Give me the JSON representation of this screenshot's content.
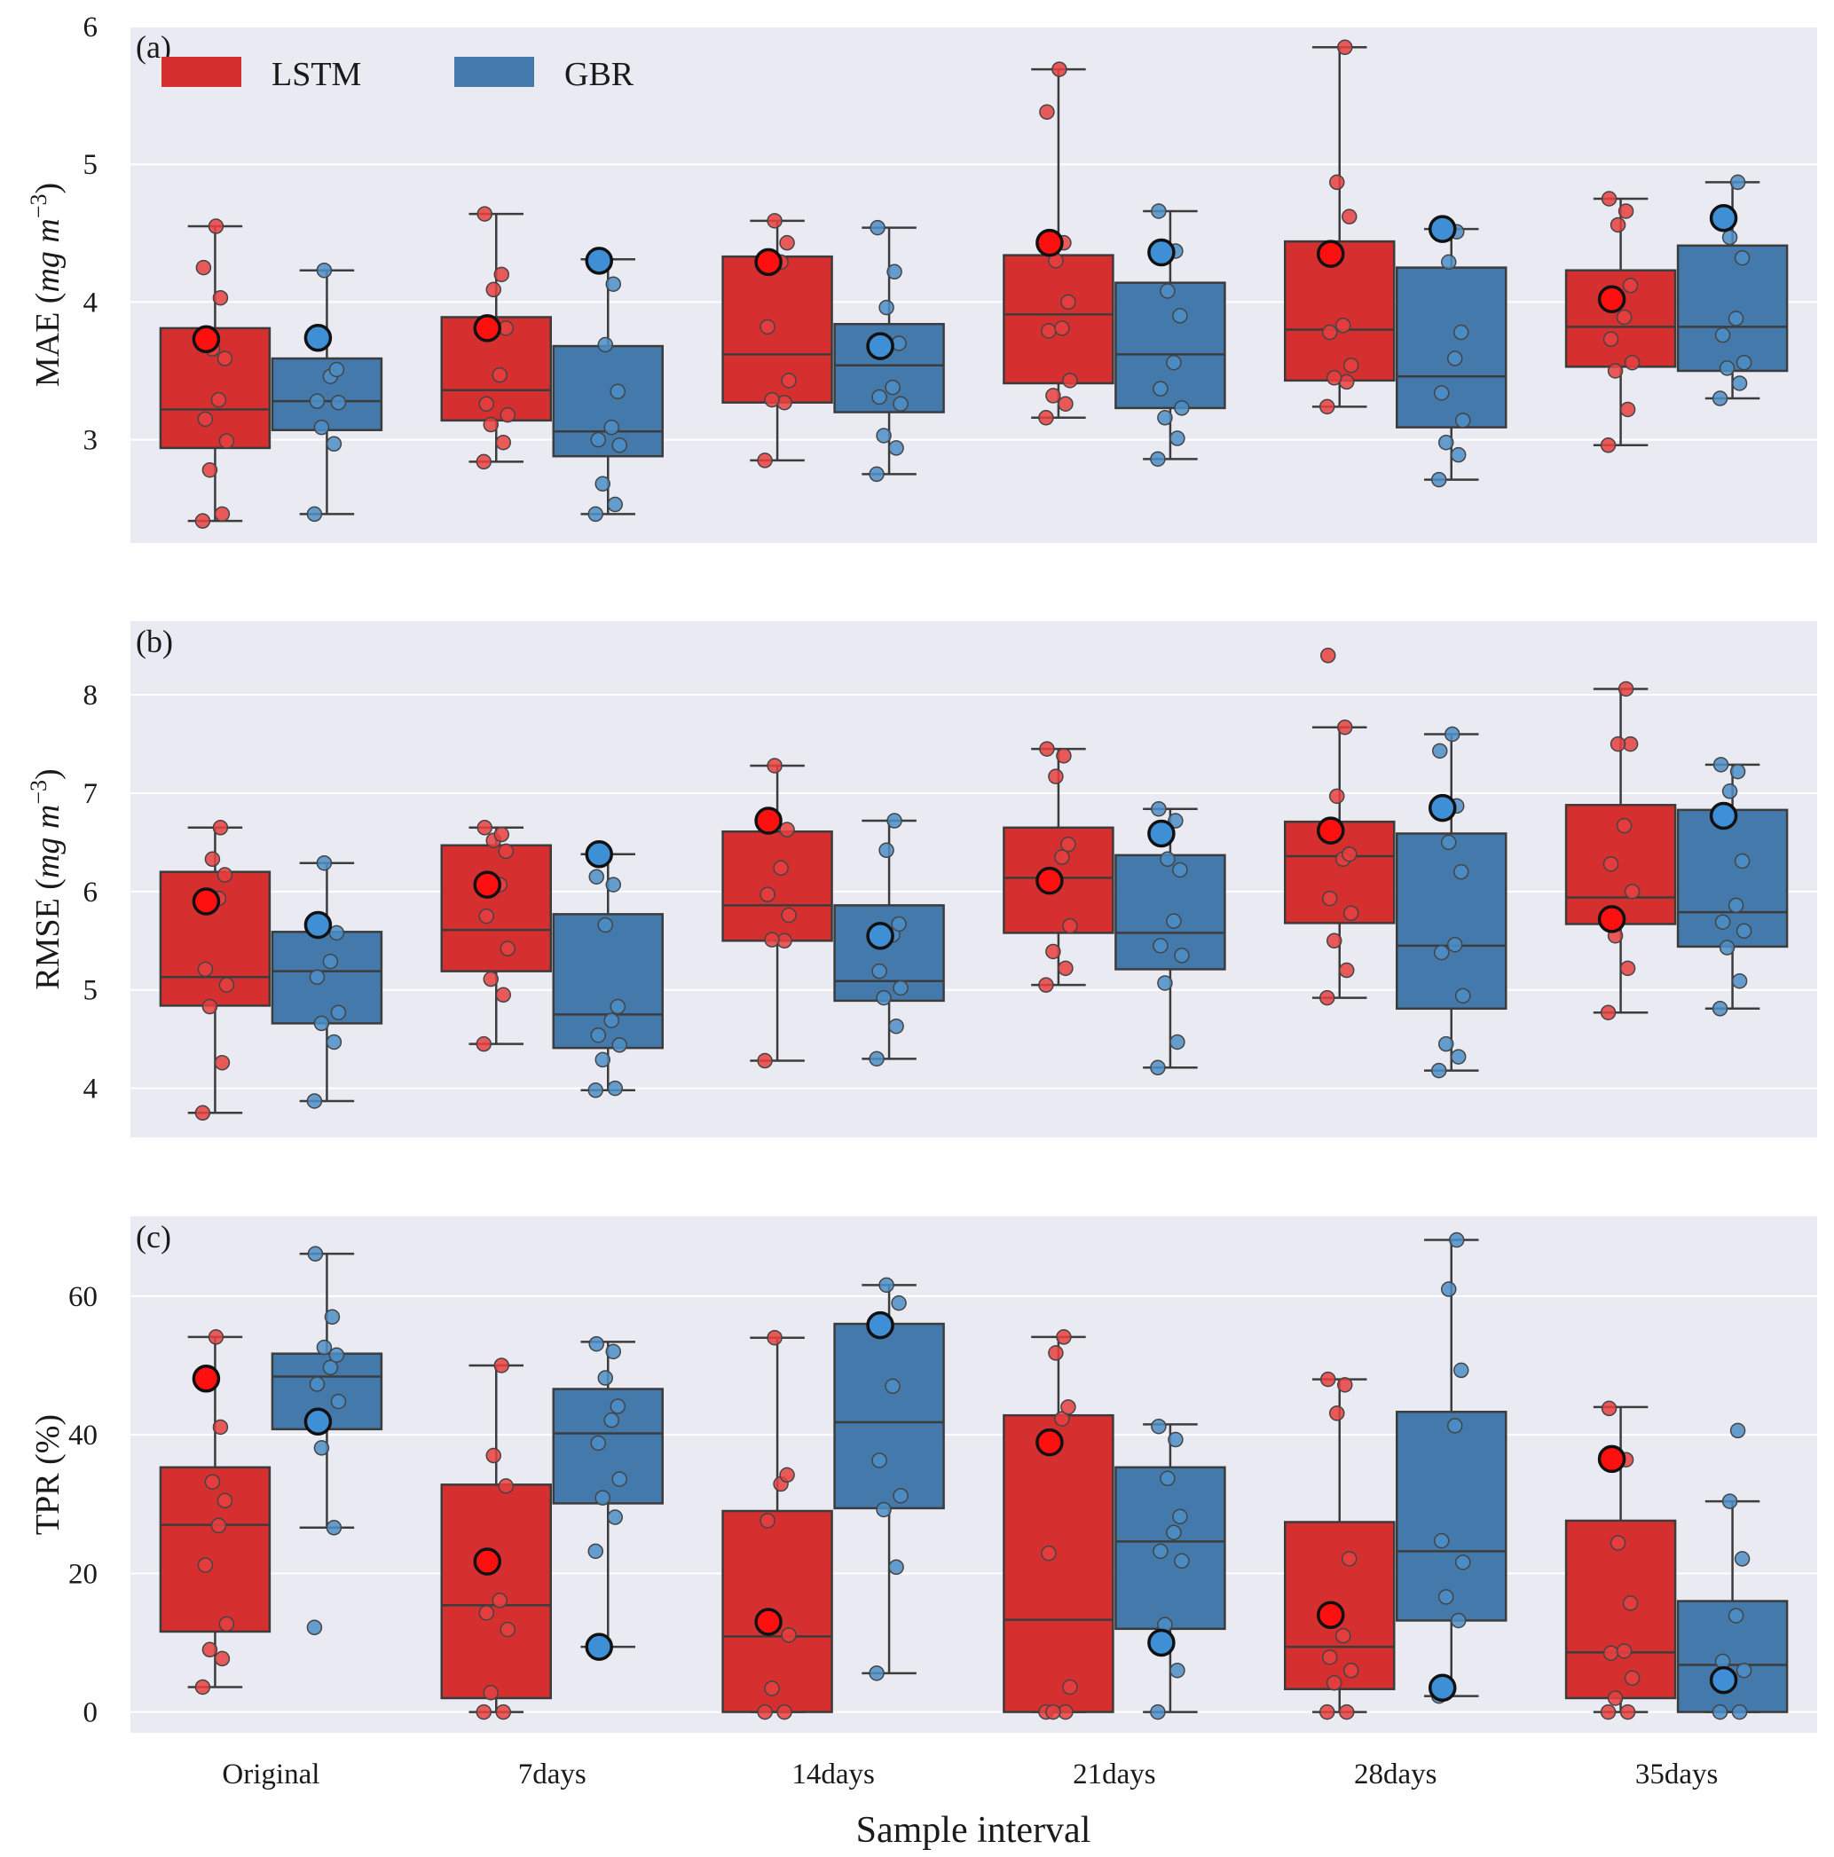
{
  "legend": {
    "items": [
      {
        "label": "LSTM",
        "color": "#d62f2f"
      },
      {
        "label": "GBR",
        "color": "#4479ab"
      }
    ]
  },
  "colors": {
    "panel_bg": "#eaeaf2",
    "lstm": "#d62f2f",
    "gbr": "#4479ab",
    "lstm_point": "#e8403f",
    "gbr_point": "#4c8ec7",
    "highlight_lstm": "#ff1010",
    "highlight_gbr": "#3f8fd6",
    "line": "#3c3c3c"
  },
  "xaxis": {
    "title": "Sample interval",
    "categories": [
      "Original",
      "7days",
      "14days",
      "21days",
      "28days",
      "35days"
    ]
  },
  "chart_data": [
    {
      "type": "box",
      "tag": "(a)",
      "ylabel_main": "MAE (",
      "ylabel_unit": "mg m",
      "ylabel_exp": "−3",
      "ylabel_close": ")",
      "ylim": [
        2.25,
        6
      ],
      "yticks": [
        3,
        4,
        5,
        6
      ],
      "series": [
        {
          "name": "LSTM",
          "boxes": [
            {
              "q1": 2.94,
              "median": 3.22,
              "q3": 3.81,
              "whislo": 2.41,
              "whishi": 4.55,
              "mean": 3.73,
              "points": [
                2.41,
                2.46,
                2.78,
                2.99,
                3.15,
                3.29,
                3.59,
                3.66,
                4.03,
                4.25,
                4.55
              ]
            },
            {
              "q1": 3.14,
              "median": 3.36,
              "q3": 3.89,
              "whislo": 2.84,
              "whishi": 4.64,
              "mean": 3.81,
              "points": [
                2.84,
                2.98,
                3.11,
                3.18,
                3.26,
                3.47,
                3.81,
                4.09,
                4.2,
                4.64
              ]
            },
            {
              "q1": 3.27,
              "median": 3.62,
              "q3": 4.33,
              "whislo": 2.85,
              "whishi": 4.59,
              "mean": 4.29,
              "points": [
                2.85,
                3.27,
                3.29,
                3.43,
                3.82,
                4.29,
                4.43,
                4.59
              ]
            },
            {
              "q1": 3.41,
              "median": 3.91,
              "q3": 4.34,
              "whislo": 3.16,
              "whishi": 5.69,
              "mean": 4.43,
              "points": [
                3.16,
                3.26,
                3.32,
                3.43,
                3.79,
                3.81,
                4.0,
                4.3,
                4.43,
                5.38,
                5.69
              ]
            },
            {
              "q1": 3.43,
              "median": 3.8,
              "q3": 4.44,
              "whislo": 3.24,
              "whishi": 5.85,
              "mean": 4.35,
              "points": [
                3.24,
                3.42,
                3.45,
                3.54,
                3.78,
                3.83,
                4.62,
                4.87,
                5.85
              ]
            },
            {
              "q1": 3.53,
              "median": 3.82,
              "q3": 4.23,
              "whislo": 2.96,
              "whishi": 4.75,
              "mean": 4.02,
              "points": [
                2.96,
                3.22,
                3.5,
                3.56,
                3.73,
                3.89,
                4.12,
                4.56,
                4.66,
                4.75
              ]
            }
          ]
        },
        {
          "name": "GBR",
          "boxes": [
            {
              "q1": 3.07,
              "median": 3.28,
              "q3": 3.59,
              "whislo": 2.46,
              "whishi": 4.23,
              "mean": 3.74,
              "points": [
                2.46,
                2.97,
                3.09,
                3.27,
                3.28,
                3.46,
                3.51,
                4.23
              ]
            },
            {
              "q1": 2.88,
              "median": 3.06,
              "q3": 3.68,
              "whislo": 2.46,
              "whishi": 4.31,
              "mean": 4.3,
              "points": [
                2.46,
                2.53,
                2.68,
                2.96,
                3.0,
                3.09,
                3.35,
                3.69,
                4.13,
                4.31
              ]
            },
            {
              "q1": 3.2,
              "median": 3.54,
              "q3": 3.84,
              "whislo": 2.75,
              "whishi": 4.54,
              "mean": 3.68,
              "points": [
                2.75,
                2.94,
                3.03,
                3.26,
                3.31,
                3.38,
                3.7,
                3.96,
                4.22,
                4.54
              ]
            },
            {
              "q1": 3.23,
              "median": 3.62,
              "q3": 4.14,
              "whislo": 2.86,
              "whishi": 4.66,
              "mean": 4.36,
              "points": [
                2.86,
                3.01,
                3.16,
                3.23,
                3.37,
                3.56,
                3.9,
                4.08,
                4.37,
                4.66
              ]
            },
            {
              "q1": 3.09,
              "median": 3.46,
              "q3": 4.25,
              "whislo": 2.71,
              "whishi": 4.53,
              "mean": 4.53,
              "points": [
                2.71,
                2.89,
                2.98,
                3.14,
                3.34,
                3.59,
                3.78,
                4.29,
                4.51
              ]
            },
            {
              "q1": 3.5,
              "median": 3.82,
              "q3": 4.41,
              "whislo": 3.3,
              "whishi": 4.87,
              "mean": 4.61,
              "points": [
                3.3,
                3.41,
                3.52,
                3.56,
                3.76,
                3.88,
                4.32,
                4.47,
                4.87
              ]
            }
          ]
        }
      ]
    },
    {
      "type": "box",
      "tag": "(b)",
      "ylabel_main": "RMSE (",
      "ylabel_unit": "mg m",
      "ylabel_exp": "−3",
      "ylabel_close": ")",
      "ylim": [
        3.5,
        8.75
      ],
      "yticks": [
        4,
        5,
        6,
        7,
        8
      ],
      "series": [
        {
          "name": "LSTM",
          "boxes": [
            {
              "q1": 4.84,
              "median": 5.13,
              "q3": 6.2,
              "whislo": 3.75,
              "whishi": 6.65,
              "mean": 5.9,
              "points": [
                3.75,
                4.26,
                4.83,
                5.05,
                5.21,
                5.93,
                6.17,
                6.33,
                6.65
              ]
            },
            {
              "q1": 5.19,
              "median": 5.61,
              "q3": 6.47,
              "whislo": 4.45,
              "whishi": 6.65,
              "mean": 6.07,
              "points": [
                4.45,
                4.95,
                5.11,
                5.42,
                5.75,
                6.07,
                6.41,
                6.52,
                6.58,
                6.65
              ]
            },
            {
              "q1": 5.5,
              "median": 5.86,
              "q3": 6.61,
              "whislo": 4.28,
              "whishi": 7.28,
              "mean": 6.72,
              "points": [
                4.28,
                5.5,
                5.51,
                5.76,
                5.97,
                6.24,
                6.63,
                7.28
              ]
            },
            {
              "q1": 5.58,
              "median": 6.14,
              "q3": 6.65,
              "whislo": 5.05,
              "whishi": 7.45,
              "mean": 6.11,
              "points": [
                5.05,
                5.22,
                5.39,
                5.65,
                6.12,
                6.35,
                6.48,
                7.17,
                7.38,
                7.45
              ]
            },
            {
              "q1": 5.68,
              "median": 6.36,
              "q3": 6.71,
              "whislo": 4.92,
              "whishi": 7.67,
              "mean": 6.62,
              "points": [
                4.92,
                5.2,
                5.5,
                5.78,
                5.93,
                6.33,
                6.38,
                6.97,
                7.67,
                8.4
              ]
            },
            {
              "q1": 5.67,
              "median": 5.94,
              "q3": 6.88,
              "whislo": 4.77,
              "whishi": 8.06,
              "mean": 5.72,
              "points": [
                4.77,
                5.22,
                5.55,
                6.0,
                6.28,
                6.67,
                7.5,
                7.5,
                8.06
              ]
            }
          ]
        },
        {
          "name": "GBR",
          "boxes": [
            {
              "q1": 4.66,
              "median": 5.19,
              "q3": 5.59,
              "whislo": 3.87,
              "whishi": 6.29,
              "mean": 5.66,
              "points": [
                3.87,
                4.47,
                4.66,
                4.77,
                5.13,
                5.29,
                5.58,
                6.29
              ]
            },
            {
              "q1": 4.41,
              "median": 4.75,
              "q3": 5.77,
              "whislo": 3.98,
              "whishi": 6.38,
              "mean": 6.38,
              "points": [
                3.98,
                4.0,
                4.29,
                4.44,
                4.54,
                4.69,
                4.83,
                5.66,
                6.07,
                6.15
              ]
            },
            {
              "q1": 4.89,
              "median": 5.09,
              "q3": 5.86,
              "whislo": 4.3,
              "whishi": 6.72,
              "mean": 5.55,
              "points": [
                4.3,
                4.63,
                4.92,
                5.02,
                5.19,
                5.56,
                5.67,
                6.42,
                6.72
              ]
            },
            {
              "q1": 5.21,
              "median": 5.58,
              "q3": 6.37,
              "whislo": 4.21,
              "whishi": 6.84,
              "mean": 6.59,
              "points": [
                4.21,
                4.47,
                5.07,
                5.35,
                5.45,
                5.7,
                6.22,
                6.33,
                6.72,
                6.84
              ]
            },
            {
              "q1": 4.81,
              "median": 5.45,
              "q3": 6.59,
              "whislo": 4.18,
              "whishi": 7.6,
              "mean": 6.85,
              "points": [
                4.18,
                4.32,
                4.45,
                4.94,
                5.38,
                5.46,
                6.2,
                6.5,
                6.87,
                7.43,
                7.6
              ]
            },
            {
              "q1": 5.44,
              "median": 5.79,
              "q3": 6.83,
              "whislo": 4.81,
              "whishi": 7.29,
              "mean": 6.77,
              "points": [
                4.81,
                5.09,
                5.43,
                5.6,
                5.69,
                5.86,
                6.31,
                7.02,
                7.22,
                7.29
              ]
            }
          ]
        }
      ]
    },
    {
      "type": "box",
      "tag": "(c)",
      "ylabel_main": "TPR (%)",
      "ylabel_unit": "",
      "ylabel_exp": "",
      "ylabel_close": "",
      "ylim": [
        -3,
        71.5
      ],
      "yticks": [
        0,
        20,
        40,
        60
      ],
      "series": [
        {
          "name": "LSTM",
          "boxes": [
            {
              "q1": 11.6,
              "median": 27.0,
              "q3": 35.3,
              "whislo": 3.6,
              "whishi": 54.1,
              "mean": 48.1,
              "points": [
                3.6,
                7.7,
                9.0,
                12.7,
                21.2,
                26.9,
                30.5,
                33.2,
                41.1,
                48.1,
                54.1
              ]
            },
            {
              "q1": 2.0,
              "median": 15.4,
              "q3": 32.8,
              "whislo": 0.0,
              "whishi": 50.0,
              "mean": 21.7,
              "points": [
                0.0,
                0.0,
                2.8,
                11.9,
                14.3,
                16.1,
                32.6,
                37.0,
                50.0
              ]
            },
            {
              "q1": 0.0,
              "median": 10.9,
              "q3": 29.0,
              "whislo": 0.0,
              "whishi": 54.0,
              "mean": 13.0,
              "points": [
                0.0,
                0.0,
                3.4,
                11.1,
                27.6,
                32.9,
                34.2,
                54.0
              ]
            },
            {
              "q1": 0.0,
              "median": 13.3,
              "q3": 42.8,
              "whislo": 0.0,
              "whishi": 54.1,
              "mean": 38.9,
              "points": [
                0.0,
                0.0,
                0.0,
                3.6,
                22.9,
                42.3,
                44.0,
                51.8,
                54.1
              ]
            },
            {
              "q1": 3.3,
              "median": 9.4,
              "q3": 27.4,
              "whislo": 0.0,
              "whishi": 48.0,
              "mean": 14.0,
              "points": [
                0.0,
                0.0,
                4.2,
                6.0,
                7.9,
                11.0,
                22.1,
                43.1,
                47.2,
                48.0
              ]
            },
            {
              "q1": 2.0,
              "median": 8.6,
              "q3": 27.6,
              "whislo": 0.0,
              "whishi": 44.0,
              "mean": 36.5,
              "points": [
                0.0,
                0.0,
                2.0,
                4.9,
                8.5,
                8.8,
                15.7,
                24.4,
                36.4,
                43.8
              ]
            }
          ]
        },
        {
          "name": "GBR",
          "boxes": [
            {
              "q1": 40.8,
              "median": 48.4,
              "q3": 51.7,
              "whislo": 26.6,
              "whishi": 66.1,
              "mean": 41.9,
              "points": [
                12.2,
                26.6,
                38.1,
                44.8,
                47.3,
                49.7,
                51.5,
                52.6,
                57.0,
                66.1
              ]
            },
            {
              "q1": 30.1,
              "median": 40.2,
              "q3": 46.6,
              "whislo": 9.4,
              "whishi": 53.4,
              "mean": 9.4,
              "points": [
                23.2,
                28.1,
                30.9,
                33.6,
                38.8,
                42.1,
                44.1,
                48.2,
                52.0,
                53.1
              ]
            },
            {
              "q1": 29.4,
              "median": 41.8,
              "q3": 56.0,
              "whislo": 5.6,
              "whishi": 61.6,
              "mean": 55.8,
              "points": [
                5.6,
                20.9,
                29.2,
                31.2,
                36.3,
                47.0,
                59.0,
                61.6
              ]
            },
            {
              "q1": 12.0,
              "median": 24.6,
              "q3": 35.3,
              "whislo": 0.0,
              "whishi": 41.5,
              "mean": 10.0,
              "points": [
                0.0,
                6.0,
                12.6,
                21.8,
                23.2,
                25.9,
                28.2,
                33.7,
                39.3,
                41.2
              ]
            },
            {
              "q1": 13.2,
              "median": 23.2,
              "q3": 43.3,
              "whislo": 2.3,
              "whishi": 68.1,
              "mean": 3.5,
              "points": [
                2.3,
                13.2,
                16.6,
                21.6,
                24.7,
                41.3,
                49.3,
                61.0,
                68.1
              ]
            },
            {
              "q1": 0.0,
              "median": 6.8,
              "q3": 16.0,
              "whislo": 0.0,
              "whishi": 30.4,
              "mean": 4.6,
              "points": [
                0.0,
                0.0,
                4.6,
                6.0,
                7.3,
                13.9,
                22.1,
                30.4,
                40.6
              ]
            }
          ]
        }
      ]
    }
  ]
}
